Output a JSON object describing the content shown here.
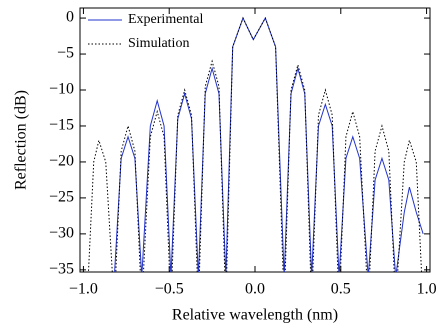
{
  "chart_data": {
    "type": "line",
    "xlabel": "Relative wavelength (nm)",
    "ylabel": "Reflection (dB)",
    "x": [
      -0.98,
      -0.94,
      -0.91,
      -0.87,
      -0.82,
      -0.78,
      -0.74,
      -0.7,
      -0.66,
      -0.61,
      -0.57,
      -0.53,
      -0.49,
      -0.45,
      -0.41,
      -0.37,
      -0.33,
      -0.29,
      -0.25,
      -0.21,
      -0.17,
      -0.13,
      -0.07,
      -0.01,
      0.06,
      0.12,
      0.17,
      0.21,
      0.25,
      0.29,
      0.33,
      0.37,
      0.41,
      0.45,
      0.49,
      0.53,
      0.57,
      0.61,
      0.66,
      0.7,
      0.74,
      0.78,
      0.82,
      0.87,
      0.9,
      0.94,
      0.98
    ],
    "series": [
      {
        "name": "Experimental",
        "color": "#2233cc",
        "style": "solid",
        "values": [
          null,
          null,
          null,
          null,
          -36,
          -19.5,
          -16.5,
          -19.5,
          -36,
          -15,
          -11.5,
          -15,
          -36,
          -14,
          -10.5,
          -14,
          -36,
          -10.5,
          -7,
          -10.5,
          -36,
          -4,
          0,
          -3,
          0,
          -4,
          -36,
          -10.5,
          -7,
          -10.5,
          -36,
          -15,
          -12,
          -15,
          -36,
          -19.5,
          -16.5,
          -19.5,
          -36,
          -22.5,
          -19.5,
          -22.5,
          -36,
          -27,
          -23.5,
          -27,
          -30
        ]
      },
      {
        "name": "Simulation",
        "color": "#000000",
        "style": "dotted",
        "values": [
          -40,
          -20,
          -17,
          -20,
          -40,
          -18.5,
          -15,
          -18.5,
          -40,
          -16.5,
          -13,
          -16.5,
          -40,
          -13.5,
          -10,
          -13.5,
          -40,
          -9.5,
          -6,
          -9.5,
          -40,
          -4,
          0,
          -3,
          0,
          -4,
          -40,
          -10,
          -6.5,
          -10,
          -40,
          -13.5,
          -10,
          -13.5,
          -40,
          -16.5,
          -13,
          -16.5,
          -40,
          -18.5,
          -15,
          -18.5,
          -40,
          -20,
          -17,
          -20,
          -40
        ]
      }
    ],
    "xlim": [
      -1.02,
      1.02
    ],
    "xticks": [
      {
        "value": -1.0,
        "label": "−1.0"
      },
      {
        "value": -0.5,
        "label": "−0.5"
      },
      {
        "value": 0.0,
        "label": "0.0"
      },
      {
        "value": 0.5,
        "label": "0.5"
      },
      {
        "value": 1.0,
        "label": "1.0"
      }
    ],
    "ylim": [
      -35.3,
      1.4
    ],
    "yticks": [
      0,
      {
        "value": -5,
        "label": "−5"
      },
      {
        "value": -10,
        "label": "−10"
      },
      {
        "value": -15,
        "label": "−15"
      },
      {
        "value": -20,
        "label": "−20"
      },
      {
        "value": -25,
        "label": "−25"
      },
      {
        "value": -30,
        "label": "−30"
      },
      {
        "value": -35,
        "label": "−35"
      }
    ],
    "legend": "upper-left"
  }
}
